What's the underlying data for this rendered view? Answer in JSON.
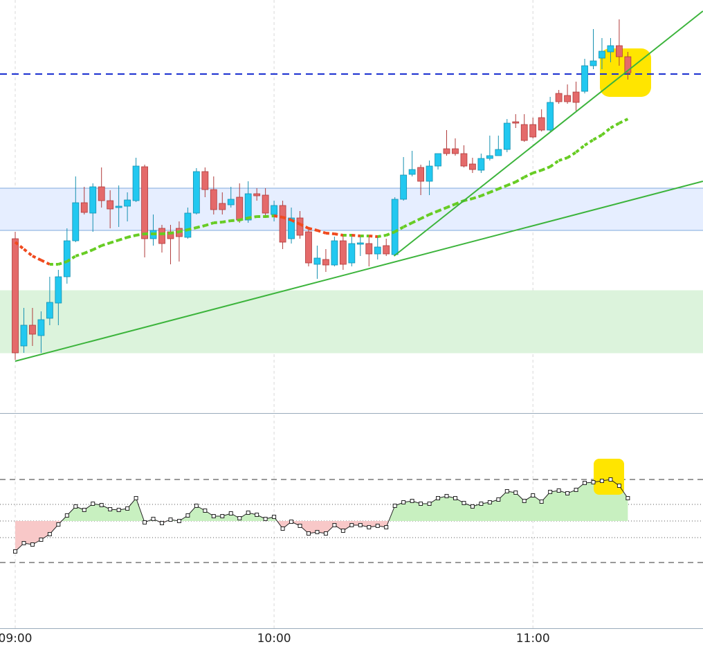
{
  "chart_data": [
    {
      "type": "candlestick",
      "categories": [
        "09:00",
        null,
        null,
        null,
        null,
        null,
        null,
        null,
        null,
        null,
        null,
        null,
        null,
        null,
        null,
        null,
        null,
        null,
        null,
        null,
        null,
        null,
        null,
        null,
        null,
        null,
        null,
        null,
        null,
        null,
        "10:00",
        null,
        null,
        null,
        null,
        null,
        null,
        null,
        null,
        null,
        null,
        null,
        null,
        null,
        null,
        null,
        null,
        null,
        null,
        null,
        null,
        null,
        null,
        null,
        null,
        null,
        null,
        null,
        null,
        null,
        "11:00",
        null,
        null,
        null,
        null,
        null,
        null,
        null,
        null,
        null,
        null,
        null
      ],
      "open": [
        255,
        100,
        130,
        115,
        140,
        162,
        200,
        252,
        307,
        292,
        330,
        310,
        300,
        302,
        310,
        359,
        255,
        270,
        265,
        270,
        257,
        292,
        352,
        326,
        306,
        304,
        315,
        282,
        320,
        318,
        290,
        303,
        255,
        285,
        265,
        218,
        225,
        217,
        252,
        220,
        247,
        248,
        233,
        245,
        232,
        312,
        348,
        358,
        338,
        360,
        385,
        385,
        378,
        363,
        354,
        371,
        375,
        384,
        424,
        420,
        420,
        430,
        412,
        465,
        462,
        467,
        468,
        505,
        516,
        525,
        534,
        518
      ],
      "high": [
        265,
        155,
        155,
        150,
        200,
        210,
        270,
        345,
        330,
        335,
        358,
        325,
        332,
        322,
        372,
        362,
        290,
        275,
        275,
        280,
        300,
        357,
        358,
        345,
        322,
        330,
        335,
        338,
        328,
        328,
        310,
        310,
        300,
        295,
        270,
        245,
        240,
        258,
        260,
        262,
        258,
        258,
        260,
        255,
        315,
        373,
        382,
        362,
        368,
        378,
        412,
        400,
        390,
        372,
        378,
        404,
        404,
        428,
        435,
        435,
        430,
        442,
        460,
        470,
        478,
        482,
        515,
        558,
        545,
        545,
        572,
        525
      ],
      "low": [
        80,
        90,
        100,
        90,
        130,
        130,
        190,
        250,
        290,
        265,
        300,
        270,
        272,
        280,
        308,
        228,
        245,
        235,
        218,
        222,
        255,
        290,
        315,
        290,
        290,
        300,
        278,
        278,
        310,
        285,
        280,
        240,
        248,
        255,
        215,
        197,
        207,
        215,
        210,
        215,
        230,
        215,
        225,
        230,
        230,
        310,
        345,
        318,
        318,
        355,
        375,
        375,
        358,
        350,
        350,
        368,
        375,
        380,
        415,
        395,
        400,
        410,
        410,
        450,
        450,
        440,
        465,
        500,
        500,
        510,
        505,
        485
      ],
      "close": [
        90,
        130,
        117,
        138,
        163,
        200,
        252,
        307,
        293,
        330,
        310,
        298,
        302,
        311,
        360,
        255,
        267,
        248,
        255,
        258,
        292,
        352,
        326,
        297,
        297,
        312,
        282,
        320,
        317,
        292,
        303,
        250,
        285,
        260,
        220,
        227,
        217,
        252,
        218,
        248,
        249,
        233,
        243,
        233,
        312,
        347,
        355,
        338,
        360,
        378,
        378,
        378,
        360,
        355,
        371,
        375,
        384,
        422,
        422,
        397,
        402,
        412,
        452,
        453,
        453,
        452,
        505,
        512,
        526,
        534,
        518,
        495
      ],
      "up_color": "#22c8f0",
      "down_color": "#e46a6a",
      "ylim": [
        0,
        600
      ],
      "moving_average": {
        "values": [
          250,
          240,
          230,
          224,
          218,
          218,
          222,
          230,
          234,
          239,
          245,
          249,
          253,
          257,
          260,
          262,
          262,
          262,
          263,
          265,
          268,
          271,
          274,
          278,
          279,
          281,
          282,
          285,
          287,
          287,
          288,
          286,
          282,
          276,
          270,
          267,
          263,
          262,
          260,
          260,
          259,
          259,
          258,
          260,
          265,
          272,
          278,
          284,
          290,
          295,
          300,
          305,
          310,
          313,
          317,
          322,
          327,
          332,
          337,
          344,
          350,
          354,
          359,
          368,
          372,
          380,
          390,
          398,
          405,
          415,
          422,
          428
        ],
        "rising_color": "#66cc22",
        "falling_color": "#f04a1e"
      },
      "trendlines": [
        {
          "x": [
            0,
            79.7
          ],
          "y": [
            78,
            338
          ],
          "color": "#3cb43c"
        },
        {
          "x": [
            43.9,
            79.7
          ],
          "y": [
            230,
            584
          ],
          "color": "#3cb43c"
        }
      ],
      "hline": {
        "value": 493,
        "color": "#1a2fd0"
      },
      "bands": [
        {
          "from": 267,
          "to": 328,
          "color": "#e6eeff",
          "edge": "#7fa8dd"
        },
        {
          "from": 90,
          "to": 180,
          "color": "#dcf3dc",
          "edge": "#dcf3dc"
        }
      ]
    },
    {
      "type": "line",
      "values": [
        -44,
        -32,
        -34,
        -27,
        -19,
        -5,
        8,
        21,
        16,
        25,
        23,
        17,
        16,
        18,
        33,
        -2,
        3,
        -3,
        2,
        0,
        8,
        22,
        15,
        7,
        7,
        11,
        4,
        12,
        9,
        3,
        6,
        -11,
        -1,
        -7,
        -18,
        -16,
        -18,
        -6,
        -14,
        -6,
        -6,
        -9,
        -7,
        -9,
        22,
        27,
        29,
        25,
        25,
        33,
        36,
        33,
        26,
        21,
        25,
        27,
        31,
        43,
        41,
        29,
        37,
        28,
        42,
        44,
        40,
        45,
        55,
        56,
        58,
        60,
        51,
        33
      ],
      "color": "#222222",
      "positive_fill": "#c8f0c0",
      "negative_fill": "#f8c8c8",
      "ylim": [
        -155,
        155
      ],
      "dashed_levels": [
        60,
        -60
      ],
      "dotted_levels": [
        24,
        0,
        -24
      ]
    }
  ]
}
